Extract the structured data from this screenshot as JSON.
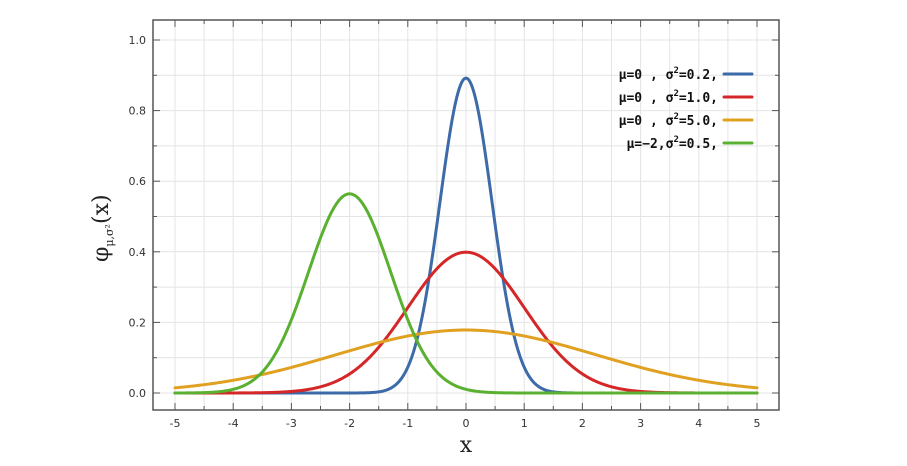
{
  "chart_data": {
    "type": "line",
    "title": "",
    "xlabel": "x",
    "ylabel": "φμ,σ²(x)",
    "ylabel_main": "φ",
    "ylabel_sub": "μ,σ²",
    "ylabel_arg": "(x)",
    "xlim": [
      -5,
      5
    ],
    "ylim": [
      0,
      1.0
    ],
    "xticks": [
      -5,
      -4,
      -3,
      -2,
      -1,
      0,
      1,
      2,
      3,
      4,
      5
    ],
    "xtick_labels": [
      "-5",
      "-4",
      "-3",
      "-2",
      "-1",
      "0",
      "1",
      "2",
      "3",
      "4",
      "5"
    ],
    "yticks": [
      0,
      0.2,
      0.4,
      0.6,
      0.8,
      1.0
    ],
    "ytick_labels": [
      "0.0",
      "0.2",
      "0.4",
      "0.6",
      "0.8",
      "1.0"
    ],
    "grid": true,
    "legend_position": "top-right",
    "series": [
      {
        "name": "μ=0, σ²=0.2,",
        "label_main": "μ=0 , σ",
        "label_sup": "2",
        "label_tail": "=0.2,",
        "mu": 0,
        "variance": 0.2,
        "color": "#3d6aa8"
      },
      {
        "name": "μ=0, σ²=1.0,",
        "label_main": "μ=0 , σ",
        "label_sup": "2",
        "label_tail": "=1.0,",
        "mu": 0,
        "variance": 1.0,
        "color": "#d62728"
      },
      {
        "name": "μ=0, σ²=5.0,",
        "label_main": "μ=0 , σ",
        "label_sup": "2",
        "label_tail": "=5.0,",
        "mu": 0,
        "variance": 5.0,
        "color": "#e0a020"
      },
      {
        "name": "μ=-2, σ²=0.5,",
        "label_main": "μ=−2,σ",
        "label_sup": "2",
        "label_tail": "=0.5,",
        "mu": -2,
        "variance": 0.5,
        "color": "#5ab030"
      }
    ]
  }
}
